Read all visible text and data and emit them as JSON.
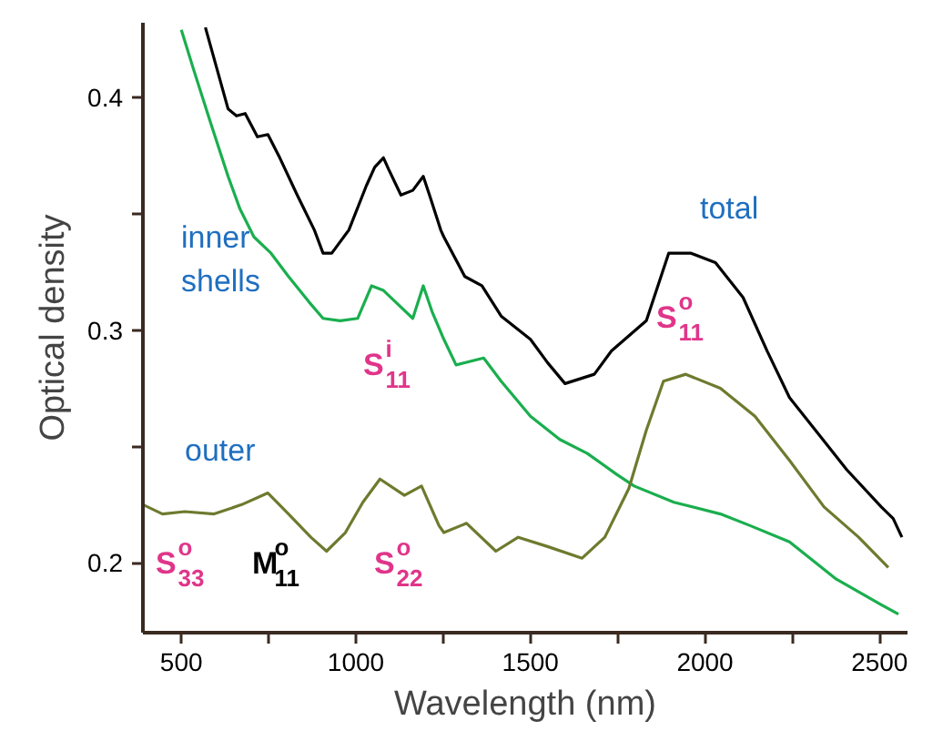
{
  "chart_data": {
    "type": "line",
    "xlabel": "Wavelength (nm)",
    "ylabel": "Optical density",
    "xlim": [
      390,
      2580
    ],
    "ylim": [
      0.17,
      0.432
    ],
    "xticks": [
      500,
      {
        "value": 750,
        "label": null
      },
      1000,
      {
        "value": 1250,
        "label": null
      },
      1500,
      {
        "value": 1750,
        "label": null
      },
      2000,
      {
        "value": 2250,
        "label": null
      },
      2500
    ],
    "yticks": [
      0.2,
      {
        "value": 0.25,
        "label": null
      },
      0.3,
      {
        "value": 0.35,
        "label": null
      },
      0.4
    ],
    "grid": false,
    "legend": false,
    "marker": "none",
    "line_style": "solid",
    "series": [
      {
        "name": "total",
        "color": "#000000",
        "x": [
          569,
          634,
          658,
          683,
          718,
          748,
          782,
          832,
          881,
          906,
          931,
          980,
          1030,
          1054,
          1079,
          1094,
          1129,
          1163,
          1193,
          1213,
          1243,
          1252,
          1312,
          1361,
          1416,
          1500,
          1549,
          1599,
          1683,
          1732,
          1832,
          1896,
          1960,
          2030,
          2109,
          2178,
          2242,
          2327,
          2406,
          2505,
          2539,
          2564
        ],
        "values": [
          0.43,
          0.395,
          0.392,
          0.393,
          0.383,
          0.384,
          0.374,
          0.358,
          0.343,
          0.333,
          0.333,
          0.343,
          0.362,
          0.37,
          0.374,
          0.369,
          0.358,
          0.36,
          0.366,
          0.357,
          0.343,
          0.34,
          0.323,
          0.319,
          0.306,
          0.296,
          0.286,
          0.277,
          0.281,
          0.291,
          0.304,
          0.333,
          0.333,
          0.329,
          0.314,
          0.291,
          0.271,
          0.255,
          0.24,
          0.224,
          0.219,
          0.211
        ]
      },
      {
        "name": "inner shells",
        "color": "#1aae4e",
        "x": [
          500,
          535,
          584,
          634,
          668,
          708,
          757,
          807,
          866,
          906,
          955,
          1005,
          1045,
          1079,
          1114,
          1163,
          1193,
          1218,
          1252,
          1287,
          1366,
          1416,
          1500,
          1584,
          1663,
          1747,
          1797,
          1911,
          2044,
          2129,
          2242,
          2376,
          2505,
          2554
        ],
        "values": [
          0.429,
          0.412,
          0.389,
          0.366,
          0.352,
          0.34,
          0.333,
          0.323,
          0.312,
          0.305,
          0.304,
          0.305,
          0.319,
          0.317,
          0.312,
          0.305,
          0.319,
          0.308,
          0.296,
          0.285,
          0.288,
          0.278,
          0.263,
          0.253,
          0.247,
          0.238,
          0.233,
          0.226,
          0.221,
          0.216,
          0.209,
          0.193,
          0.182,
          0.178
        ]
      },
      {
        "name": "outer",
        "color": "#6e7a2e",
        "x": [
          390,
          446,
          510,
          594,
          673,
          748,
          807,
          871,
          916,
          970,
          1020,
          1069,
          1139,
          1188,
          1238,
          1252,
          1317,
          1401,
          1465,
          1549,
          1648,
          1713,
          1782,
          1832,
          1881,
          1945,
          2044,
          2143,
          2242,
          2341,
          2440,
          2525
        ],
        "values": [
          0.225,
          0.221,
          0.222,
          0.221,
          0.225,
          0.23,
          0.221,
          0.211,
          0.205,
          0.213,
          0.226,
          0.236,
          0.229,
          0.233,
          0.216,
          0.213,
          0.217,
          0.205,
          0.211,
          0.207,
          0.202,
          0.211,
          0.232,
          0.257,
          0.278,
          0.281,
          0.275,
          0.263,
          0.244,
          0.224,
          0.211,
          0.198
        ]
      }
    ],
    "annotations": [
      "S$^{i}$$_{11}$",
      "S$^{o}$$_{11}$",
      "S$^{o}$$_{33}$",
      "M$^{o}$$_{11}$",
      "S$^{o}$$_{22}$"
    ]
  }
}
